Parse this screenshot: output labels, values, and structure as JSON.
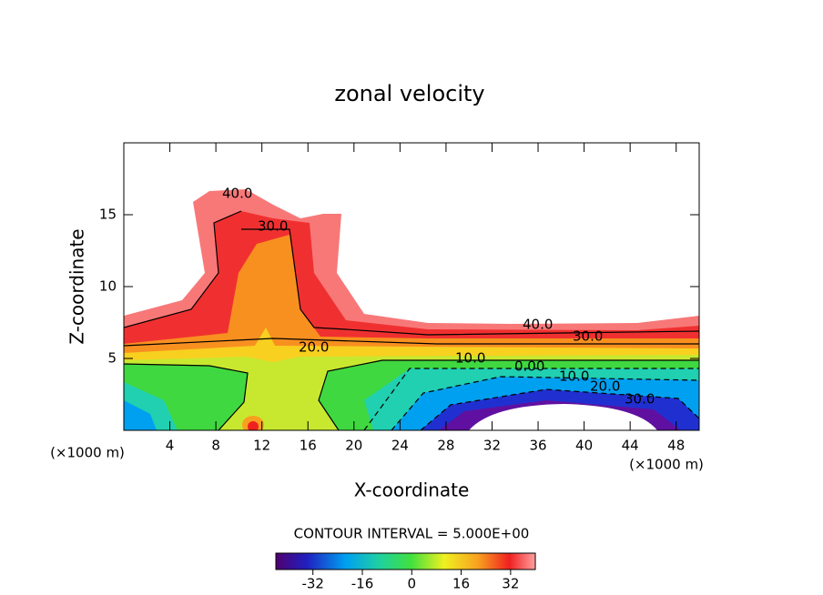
{
  "chart_data": {
    "type": "contour",
    "title": "zonal velocity",
    "xlabel": "X-coordinate",
    "ylabel": "Z-coordinate",
    "x_unit": "(×1000 m)",
    "x_unit_right": "(×1000 m)",
    "xlim": [
      0,
      50
    ],
    "xticks": [
      4,
      8,
      12,
      16,
      20,
      24,
      28,
      32,
      36,
      40,
      44,
      48
    ],
    "ylim": [
      0,
      20
    ],
    "yticks": [
      5,
      10,
      15
    ],
    "contour_labels": [
      "40.0",
      "30.0",
      "20.0",
      "40.0",
      "30.0",
      "10.0",
      "0.00",
      "10.0",
      "20.0",
      "30.0"
    ],
    "contour_interval": "CONTOUR INTERVAL = 5.000E+00",
    "colorbar": {
      "lim": [
        -44,
        40
      ],
      "ticks": [
        -32,
        -16,
        0,
        16,
        32
      ]
    }
  }
}
